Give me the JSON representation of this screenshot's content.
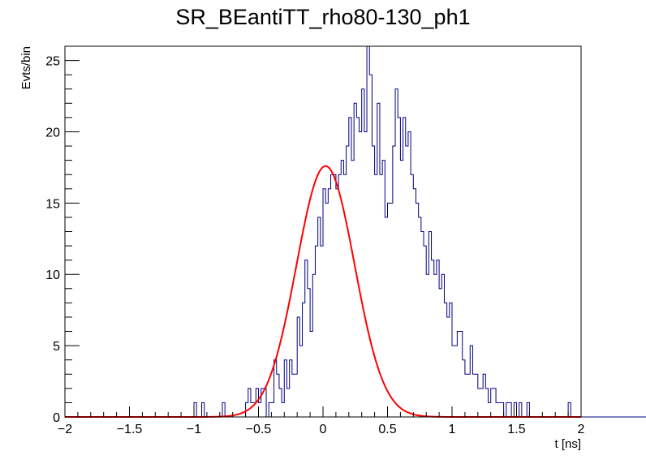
{
  "chart_data": {
    "type": "histogram",
    "title": "SR_BEantiTT_rho80-130_ph1",
    "xlabel": "t [ns]",
    "ylabel": "Evts/bin",
    "xlim": [
      -2,
      2
    ],
    "ylim": [
      0,
      26
    ],
    "bin_width": 0.02,
    "bin_start": -2.0,
    "x_ticks": [
      -2,
      -1.5,
      -1,
      -0.5,
      0,
      0.5,
      1,
      1.5,
      2
    ],
    "x_tick_labels": [
      "−2",
      "−1.5",
      "−1",
      "−0.5",
      "0",
      "0.5",
      "1",
      "1.5",
      "2"
    ],
    "y_ticks": [
      0,
      5,
      10,
      15,
      20,
      25
    ],
    "y_tick_labels": [
      "0",
      "5",
      "10",
      "15",
      "20",
      "25"
    ],
    "grid": false,
    "series": [
      {
        "type": "step",
        "color": "#000080",
        "values": [
          0,
          0,
          0,
          0,
          0,
          0,
          0,
          0,
          0,
          0,
          0,
          0,
          0,
          0,
          0,
          0,
          0,
          0,
          0,
          0,
          0,
          0,
          0,
          0,
          0,
          0,
          0,
          0,
          0,
          0,
          0,
          0,
          0,
          0,
          0,
          0,
          0,
          0,
          0,
          0,
          0,
          0,
          0,
          0,
          0,
          0,
          0,
          0,
          0,
          0,
          1,
          0,
          0,
          1,
          0,
          0,
          0,
          0,
          0,
          0,
          0,
          1,
          0,
          0,
          0,
          0,
          0,
          0,
          0,
          0,
          1,
          2,
          1,
          1,
          2,
          1,
          2,
          2,
          0,
          1,
          1,
          4,
          3,
          2,
          1,
          4,
          2,
          4,
          3,
          3,
          7,
          5,
          8,
          11,
          9,
          6,
          10,
          12,
          14,
          12,
          16,
          15,
          16,
          17,
          17,
          16,
          17,
          18,
          17,
          19,
          21,
          18,
          22,
          21,
          20,
          23,
          20,
          26,
          24,
          19,
          17,
          22,
          17,
          18,
          14,
          15,
          15,
          19,
          23,
          21,
          18,
          21,
          19,
          20,
          17,
          16,
          15,
          14,
          13,
          12,
          10,
          13,
          11,
          10,
          11,
          9,
          10,
          8,
          7,
          8,
          5,
          5,
          6,
          6,
          4,
          3,
          3,
          5,
          3,
          3,
          2,
          2,
          3,
          2,
          1,
          2,
          2,
          1,
          1,
          1,
          0,
          1,
          1,
          0,
          1,
          0,
          1,
          0,
          0,
          1,
          0,
          0,
          0,
          0,
          0,
          0,
          0,
          0,
          0,
          0,
          0,
          0,
          0,
          0,
          0,
          1,
          0,
          0,
          0,
          0,
          0,
          0,
          0,
          0,
          0,
          0,
          0,
          0,
          0,
          0,
          0,
          0,
          0,
          0,
          0,
          0,
          0,
          0,
          0,
          0,
          0,
          0,
          0,
          0,
          0,
          0,
          0,
          0,
          0,
          0,
          0,
          0,
          0,
          0,
          0,
          0,
          0,
          0,
          0,
          0,
          0,
          0,
          0,
          0,
          0,
          0,
          0,
          0,
          0,
          0,
          0,
          0,
          0,
          0,
          0,
          0,
          0,
          0,
          0,
          0,
          0,
          0
        ]
      },
      {
        "type": "fit",
        "function": "gaussian",
        "color": "#ff0000",
        "amplitude": 17.6,
        "mean": 0.02,
        "sigma": 0.225
      }
    ]
  }
}
